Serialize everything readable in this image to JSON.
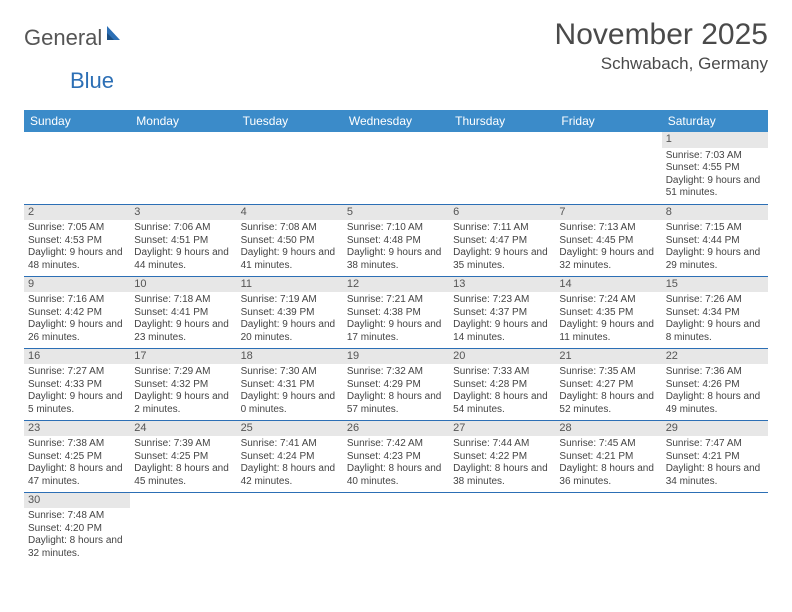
{
  "logo": {
    "text1": "General",
    "text2": "Blue"
  },
  "title": "November 2025",
  "location": "Schwabach, Germany",
  "colors": {
    "header_bg": "#3b8bc9",
    "header_fg": "#ffffff",
    "daynum_bg": "#e7e7e7",
    "cell_border": "#2c6fb5",
    "logo_accent": "#2c6fb5"
  },
  "weekdays": [
    "Sunday",
    "Monday",
    "Tuesday",
    "Wednesday",
    "Thursday",
    "Friday",
    "Saturday"
  ],
  "weeks": [
    [
      null,
      null,
      null,
      null,
      null,
      null,
      {
        "d": "1",
        "sr": "Sunrise: 7:03 AM",
        "ss": "Sunset: 4:55 PM",
        "dl": "Daylight: 9 hours and 51 minutes."
      }
    ],
    [
      {
        "d": "2",
        "sr": "Sunrise: 7:05 AM",
        "ss": "Sunset: 4:53 PM",
        "dl": "Daylight: 9 hours and 48 minutes."
      },
      {
        "d": "3",
        "sr": "Sunrise: 7:06 AM",
        "ss": "Sunset: 4:51 PM",
        "dl": "Daylight: 9 hours and 44 minutes."
      },
      {
        "d": "4",
        "sr": "Sunrise: 7:08 AM",
        "ss": "Sunset: 4:50 PM",
        "dl": "Daylight: 9 hours and 41 minutes."
      },
      {
        "d": "5",
        "sr": "Sunrise: 7:10 AM",
        "ss": "Sunset: 4:48 PM",
        "dl": "Daylight: 9 hours and 38 minutes."
      },
      {
        "d": "6",
        "sr": "Sunrise: 7:11 AM",
        "ss": "Sunset: 4:47 PM",
        "dl": "Daylight: 9 hours and 35 minutes."
      },
      {
        "d": "7",
        "sr": "Sunrise: 7:13 AM",
        "ss": "Sunset: 4:45 PM",
        "dl": "Daylight: 9 hours and 32 minutes."
      },
      {
        "d": "8",
        "sr": "Sunrise: 7:15 AM",
        "ss": "Sunset: 4:44 PM",
        "dl": "Daylight: 9 hours and 29 minutes."
      }
    ],
    [
      {
        "d": "9",
        "sr": "Sunrise: 7:16 AM",
        "ss": "Sunset: 4:42 PM",
        "dl": "Daylight: 9 hours and 26 minutes."
      },
      {
        "d": "10",
        "sr": "Sunrise: 7:18 AM",
        "ss": "Sunset: 4:41 PM",
        "dl": "Daylight: 9 hours and 23 minutes."
      },
      {
        "d": "11",
        "sr": "Sunrise: 7:19 AM",
        "ss": "Sunset: 4:39 PM",
        "dl": "Daylight: 9 hours and 20 minutes."
      },
      {
        "d": "12",
        "sr": "Sunrise: 7:21 AM",
        "ss": "Sunset: 4:38 PM",
        "dl": "Daylight: 9 hours and 17 minutes."
      },
      {
        "d": "13",
        "sr": "Sunrise: 7:23 AM",
        "ss": "Sunset: 4:37 PM",
        "dl": "Daylight: 9 hours and 14 minutes."
      },
      {
        "d": "14",
        "sr": "Sunrise: 7:24 AM",
        "ss": "Sunset: 4:35 PM",
        "dl": "Daylight: 9 hours and 11 minutes."
      },
      {
        "d": "15",
        "sr": "Sunrise: 7:26 AM",
        "ss": "Sunset: 4:34 PM",
        "dl": "Daylight: 9 hours and 8 minutes."
      }
    ],
    [
      {
        "d": "16",
        "sr": "Sunrise: 7:27 AM",
        "ss": "Sunset: 4:33 PM",
        "dl": "Daylight: 9 hours and 5 minutes."
      },
      {
        "d": "17",
        "sr": "Sunrise: 7:29 AM",
        "ss": "Sunset: 4:32 PM",
        "dl": "Daylight: 9 hours and 2 minutes."
      },
      {
        "d": "18",
        "sr": "Sunrise: 7:30 AM",
        "ss": "Sunset: 4:31 PM",
        "dl": "Daylight: 9 hours and 0 minutes."
      },
      {
        "d": "19",
        "sr": "Sunrise: 7:32 AM",
        "ss": "Sunset: 4:29 PM",
        "dl": "Daylight: 8 hours and 57 minutes."
      },
      {
        "d": "20",
        "sr": "Sunrise: 7:33 AM",
        "ss": "Sunset: 4:28 PM",
        "dl": "Daylight: 8 hours and 54 minutes."
      },
      {
        "d": "21",
        "sr": "Sunrise: 7:35 AM",
        "ss": "Sunset: 4:27 PM",
        "dl": "Daylight: 8 hours and 52 minutes."
      },
      {
        "d": "22",
        "sr": "Sunrise: 7:36 AM",
        "ss": "Sunset: 4:26 PM",
        "dl": "Daylight: 8 hours and 49 minutes."
      }
    ],
    [
      {
        "d": "23",
        "sr": "Sunrise: 7:38 AM",
        "ss": "Sunset: 4:25 PM",
        "dl": "Daylight: 8 hours and 47 minutes."
      },
      {
        "d": "24",
        "sr": "Sunrise: 7:39 AM",
        "ss": "Sunset: 4:25 PM",
        "dl": "Daylight: 8 hours and 45 minutes."
      },
      {
        "d": "25",
        "sr": "Sunrise: 7:41 AM",
        "ss": "Sunset: 4:24 PM",
        "dl": "Daylight: 8 hours and 42 minutes."
      },
      {
        "d": "26",
        "sr": "Sunrise: 7:42 AM",
        "ss": "Sunset: 4:23 PM",
        "dl": "Daylight: 8 hours and 40 minutes."
      },
      {
        "d": "27",
        "sr": "Sunrise: 7:44 AM",
        "ss": "Sunset: 4:22 PM",
        "dl": "Daylight: 8 hours and 38 minutes."
      },
      {
        "d": "28",
        "sr": "Sunrise: 7:45 AM",
        "ss": "Sunset: 4:21 PM",
        "dl": "Daylight: 8 hours and 36 minutes."
      },
      {
        "d": "29",
        "sr": "Sunrise: 7:47 AM",
        "ss": "Sunset: 4:21 PM",
        "dl": "Daylight: 8 hours and 34 minutes."
      }
    ],
    [
      {
        "d": "30",
        "sr": "Sunrise: 7:48 AM",
        "ss": "Sunset: 4:20 PM",
        "dl": "Daylight: 8 hours and 32 minutes."
      },
      null,
      null,
      null,
      null,
      null,
      null
    ]
  ]
}
